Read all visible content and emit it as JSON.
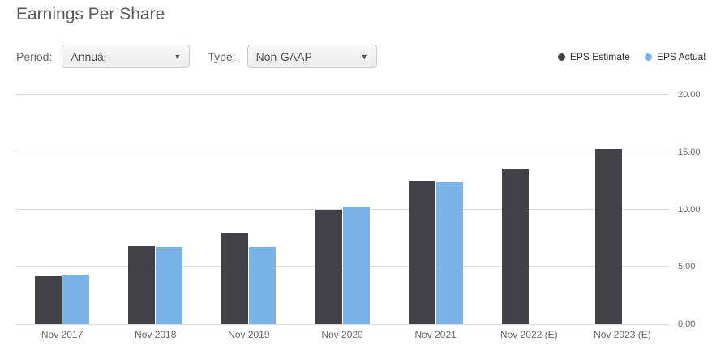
{
  "title": "Earnings Per Share",
  "controls": {
    "period_label": "Period:",
    "period_value": "Annual",
    "type_label": "Type:",
    "type_value": "Non-GAAP",
    "dropdown_caret": "▼"
  },
  "legend": {
    "items": [
      {
        "label": "EPS Estimate",
        "color": "#414147"
      },
      {
        "label": "EPS Actual",
        "color": "#79b3e8"
      }
    ]
  },
  "colors": {
    "estimate_bar": "#414147",
    "actual_bar": "#79b3e8",
    "gridline": "#d9d9d9",
    "axis_text": "#666666"
  },
  "chart_data": {
    "type": "bar",
    "title": "Earnings Per Share",
    "categories": [
      "Nov 2017",
      "Nov 2018",
      "Nov 2019",
      "Nov 2020",
      "Nov 2021",
      "Nov 2022 (E)",
      "Nov 2023 (E)"
    ],
    "series": [
      {
        "name": "EPS Estimate",
        "color": "#414147",
        "values": [
          4.2,
          6.8,
          7.9,
          10.0,
          12.45,
          13.5,
          15.3
        ]
      },
      {
        "name": "EPS Actual",
        "color": "#79b3e8",
        "values": [
          4.3,
          6.75,
          6.7,
          10.25,
          12.4,
          null,
          null
        ]
      }
    ],
    "xlabel": "",
    "ylabel": "",
    "ylim": [
      0,
      20
    ],
    "yticks": [
      0,
      5,
      10,
      15,
      20
    ],
    "ytick_decimals": 2,
    "yaxis_side": "right",
    "grid": true,
    "legend_position": "top-right"
  }
}
